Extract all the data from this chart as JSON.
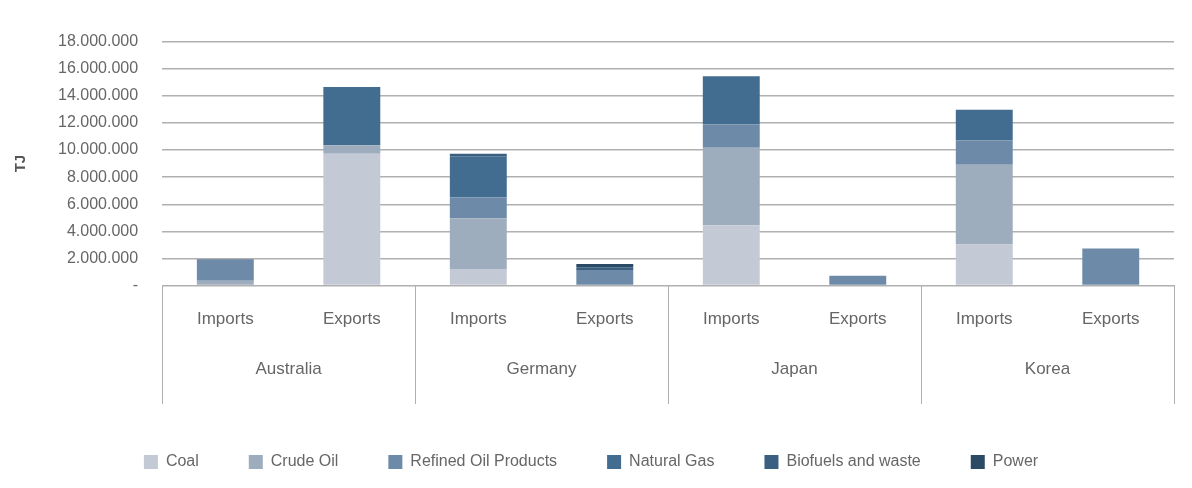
{
  "chart_data": {
    "type": "bar",
    "stacked": true,
    "ylabel": "TJ",
    "categories": [
      "Imports",
      "Exports",
      "Imports",
      "Exports",
      "Imports",
      "Exports",
      "Imports",
      "Exports"
    ],
    "annotations": [
      "Australia",
      "Germany",
      "Japan",
      "Korea"
    ],
    "series": [
      {
        "name": "Coal",
        "color": "#c3cad5",
        "values": [
          0,
          9730000,
          1220000,
          0,
          4460000,
          0,
          3030000,
          0
        ]
      },
      {
        "name": "Crude Oil",
        "color": "#9eadbd",
        "values": [
          350000,
          630000,
          3750000,
          0,
          5710000,
          0,
          5880000,
          0
        ]
      },
      {
        "name": "Refined Oil Products",
        "color": "#6d8ba8",
        "values": [
          1550000,
          0,
          1530000,
          1160000,
          1720000,
          720000,
          1810000,
          2730000
        ]
      },
      {
        "name": "Natural Gas",
        "color": "#426d91",
        "values": [
          0,
          4290000,
          3040000,
          0,
          3560000,
          0,
          2250000,
          0
        ]
      },
      {
        "name": "Biofuels and waste",
        "color": "#3a5f80",
        "values": [
          50000,
          0,
          190000,
          200000,
          0,
          0,
          0,
          0
        ]
      },
      {
        "name": "Power",
        "color": "#2b4a66",
        "values": [
          0,
          0,
          0,
          240000,
          0,
          0,
          0,
          0
        ]
      }
    ],
    "ylim": [
      0,
      18000000
    ],
    "yticks": [
      {
        "value": 0,
        "label": "-"
      },
      {
        "value": 2000000,
        "label": "2.000.000"
      },
      {
        "value": 4000000,
        "label": "4.000.000"
      },
      {
        "value": 6000000,
        "label": "6.000.000"
      },
      {
        "value": 8000000,
        "label": "8.000.000"
      },
      {
        "value": 10000000,
        "label": "10.000.000"
      },
      {
        "value": 12000000,
        "label": "12.000.000"
      },
      {
        "value": 14000000,
        "label": "14.000.000"
      },
      {
        "value": 16000000,
        "label": "16.000.000"
      },
      {
        "value": 18000000,
        "label": "18.000.000"
      }
    ],
    "grid": "y",
    "legend": "bottom"
  }
}
